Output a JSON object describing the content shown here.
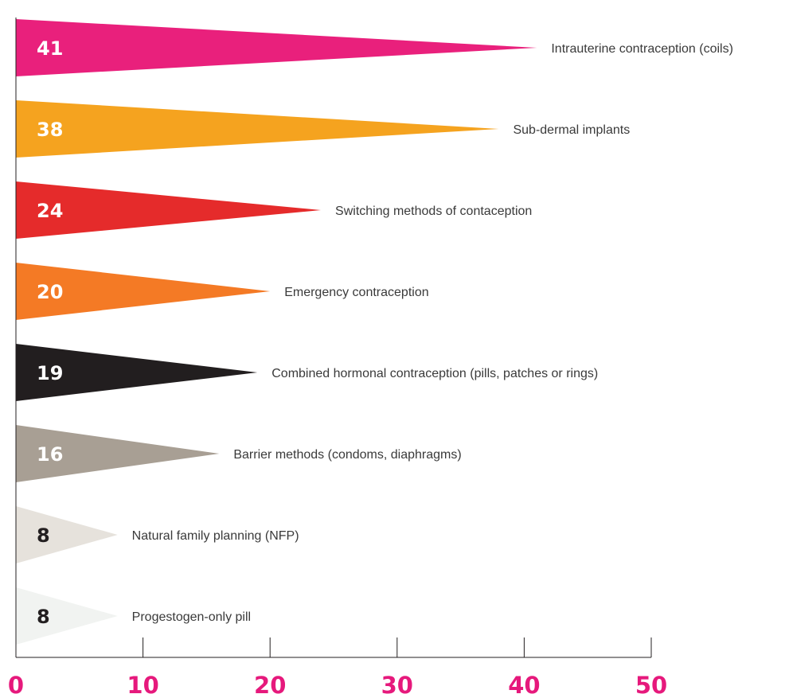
{
  "chart_data": {
    "type": "bar",
    "categories": [
      "Intrauterine contraception (coils)",
      "Sub-dermal implants",
      "Switching methods of contaception",
      "Emergency contraception",
      "Combined hormonal contraception (pills, patches or rings)",
      "Barrier methods (condoms, diaphragms)",
      "Natural family planning (NFP)",
      "Progestogen-only pill"
    ],
    "values": [
      41,
      38,
      24,
      20,
      19,
      16,
      8,
      8
    ],
    "value_labels": [
      "41",
      "38",
      "24",
      "20",
      "19",
      "16",
      "8",
      "8"
    ],
    "colors": [
      "#e9207c",
      "#f5a31f",
      "#e52b2b",
      "#f47a25",
      "#221e1f",
      "#a89f94",
      "#e6e2dc",
      "#f1f3f1"
    ],
    "value_label_colors": [
      "#ffffff",
      "#ffffff",
      "#ffffff",
      "#ffffff",
      "#ffffff",
      "#ffffff",
      "#231f20",
      "#231f20"
    ],
    "xlim": [
      0,
      50
    ],
    "x_ticks": [
      0,
      10,
      20,
      30,
      40,
      50
    ],
    "x_tick_labels": [
      "0",
      "10",
      "20",
      "30",
      "40",
      "50"
    ],
    "tick_label_color": "#e6197c",
    "orientation": "horizontal",
    "mark_shape": "triangle",
    "grid": false,
    "title": "",
    "xlabel": "",
    "ylabel": ""
  }
}
